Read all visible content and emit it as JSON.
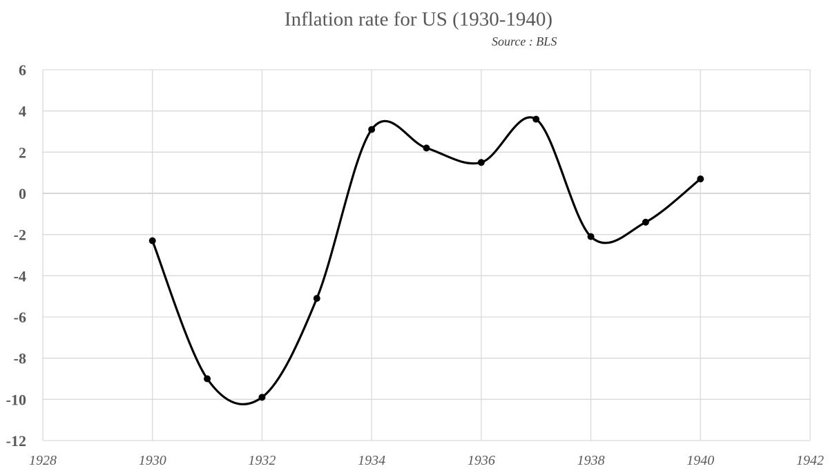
{
  "chart_data": {
    "type": "scatter",
    "title": "Inflation rate for US (1930-1940)",
    "subtitle": "Source : BLS",
    "xlabel": "",
    "ylabel": "",
    "xlim": [
      1928,
      1942
    ],
    "ylim": [
      -12,
      6
    ],
    "x_ticks": [
      1928,
      1930,
      1932,
      1934,
      1936,
      1938,
      1940,
      1942
    ],
    "y_ticks": [
      6,
      4,
      2,
      0,
      -2,
      -4,
      -6,
      -8,
      -10,
      -12
    ],
    "grid": true,
    "legend": "none",
    "line_style": "smoothed",
    "series": [
      {
        "color": "#000000",
        "x": [
          1930,
          1931,
          1932,
          1933,
          1934,
          1935,
          1936,
          1937,
          1938,
          1939,
          1940
        ],
        "y": [
          -2.3,
          -9.0,
          -9.9,
          -5.1,
          3.1,
          2.2,
          1.5,
          3.6,
          -2.1,
          -1.4,
          0.7
        ]
      }
    ]
  }
}
